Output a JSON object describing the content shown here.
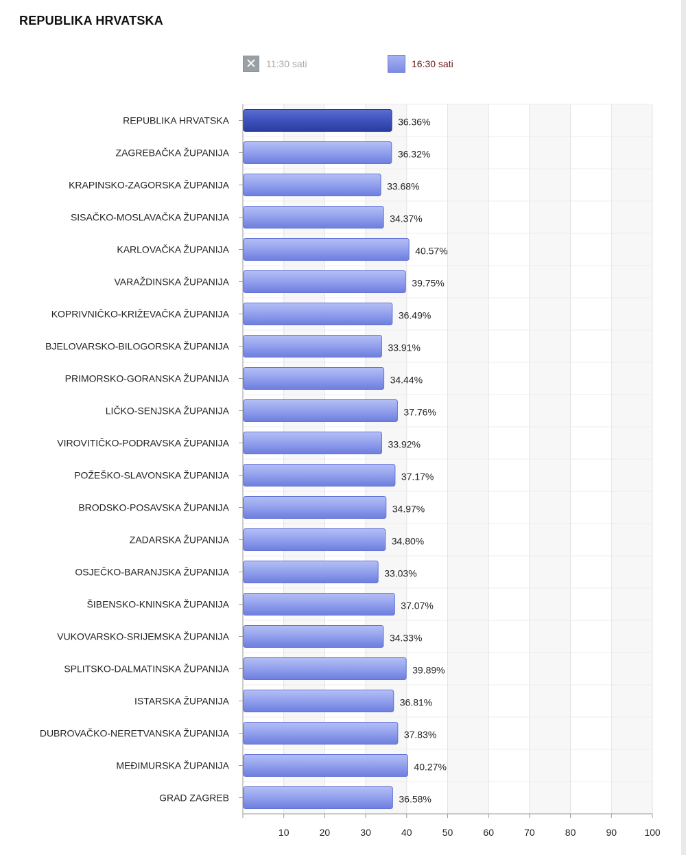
{
  "page": {
    "title": "REPUBLIKA HRVATSKA"
  },
  "legend": [
    {
      "label": "11:30 sati",
      "state": "hidden",
      "icon": "close-icon",
      "color": "#9aa1a6"
    },
    {
      "label": "16:30 sati",
      "state": "visible",
      "color": "#8896ea"
    }
  ],
  "colors": {
    "bar": "#8896ea",
    "bar_highlight": "#3a4fb7",
    "grid": "#e3e3e3",
    "alt_band": "#f7f7f7"
  },
  "chart_data": {
    "type": "bar",
    "orientation": "horizontal",
    "title": "REPUBLIKA HRVATSKA",
    "categories": [
      "REPUBLIKA HRVATSKA",
      "ZAGREBAČKA ŽUPANIJA",
      "KRAPINSKO-ZAGORSKA ŽUPANIJA",
      "SISAČKO-MOSLAVAČKA ŽUPANIJA",
      "KARLOVAČKA ŽUPANIJA",
      "VARAŽDINSKA ŽUPANIJA",
      "KOPRIVNIČKO-KRIŽEVAČKA ŽUPANIJA",
      "BJELOVARSKO-BILOGORSKA ŽUPANIJA",
      "PRIMORSKO-GORANSKA ŽUPANIJA",
      "LIČKO-SENJSKA ŽUPANIJA",
      "VIROVITIČKO-PODRAVSKA ŽUPANIJA",
      "POŽEŠKO-SLAVONSKA ŽUPANIJA",
      "BRODSKO-POSAVSKA ŽUPANIJA",
      "ZADARSKA ŽUPANIJA",
      "OSJEČKO-BARANJSKA ŽUPANIJA",
      "ŠIBENSKO-KNINSKA ŽUPANIJA",
      "VUKOVARSKO-SRIJEMSKA ŽUPANIJA",
      "SPLITSKO-DALMATINSKA ŽUPANIJA",
      "ISTARSKA ŽUPANIJA",
      "DUBROVAČKO-NERETVANSKA ŽUPANIJA",
      "MEĐIMURSKA ŽUPANIJA",
      "GRAD ZAGREB"
    ],
    "series": [
      {
        "name": "16:30 sati",
        "values": [
          36.36,
          36.32,
          33.68,
          34.37,
          40.57,
          39.75,
          36.49,
          33.91,
          34.44,
          37.76,
          33.92,
          37.17,
          34.97,
          34.8,
          33.03,
          37.07,
          34.33,
          39.89,
          36.81,
          37.83,
          40.27,
          36.58
        ],
        "labels": [
          "36.36%",
          "36.32%",
          "33.68%",
          "34.37%",
          "40.57%",
          "39.75%",
          "36.49%",
          "33.91%",
          "34.44%",
          "37.76%",
          "33.92%",
          "37.17%",
          "34.97%",
          "34.80%",
          "33.03%",
          "37.07%",
          "34.33%",
          "39.89%",
          "36.81%",
          "37.83%",
          "40.27%",
          "36.58%"
        ]
      }
    ],
    "highlight_index": 0,
    "xlim": [
      0,
      100
    ],
    "xticks": [
      10,
      20,
      30,
      40,
      50,
      60,
      70,
      80,
      90,
      100
    ],
    "xlabel": "",
    "ylabel": "",
    "grid": true,
    "legend_position": "top"
  }
}
